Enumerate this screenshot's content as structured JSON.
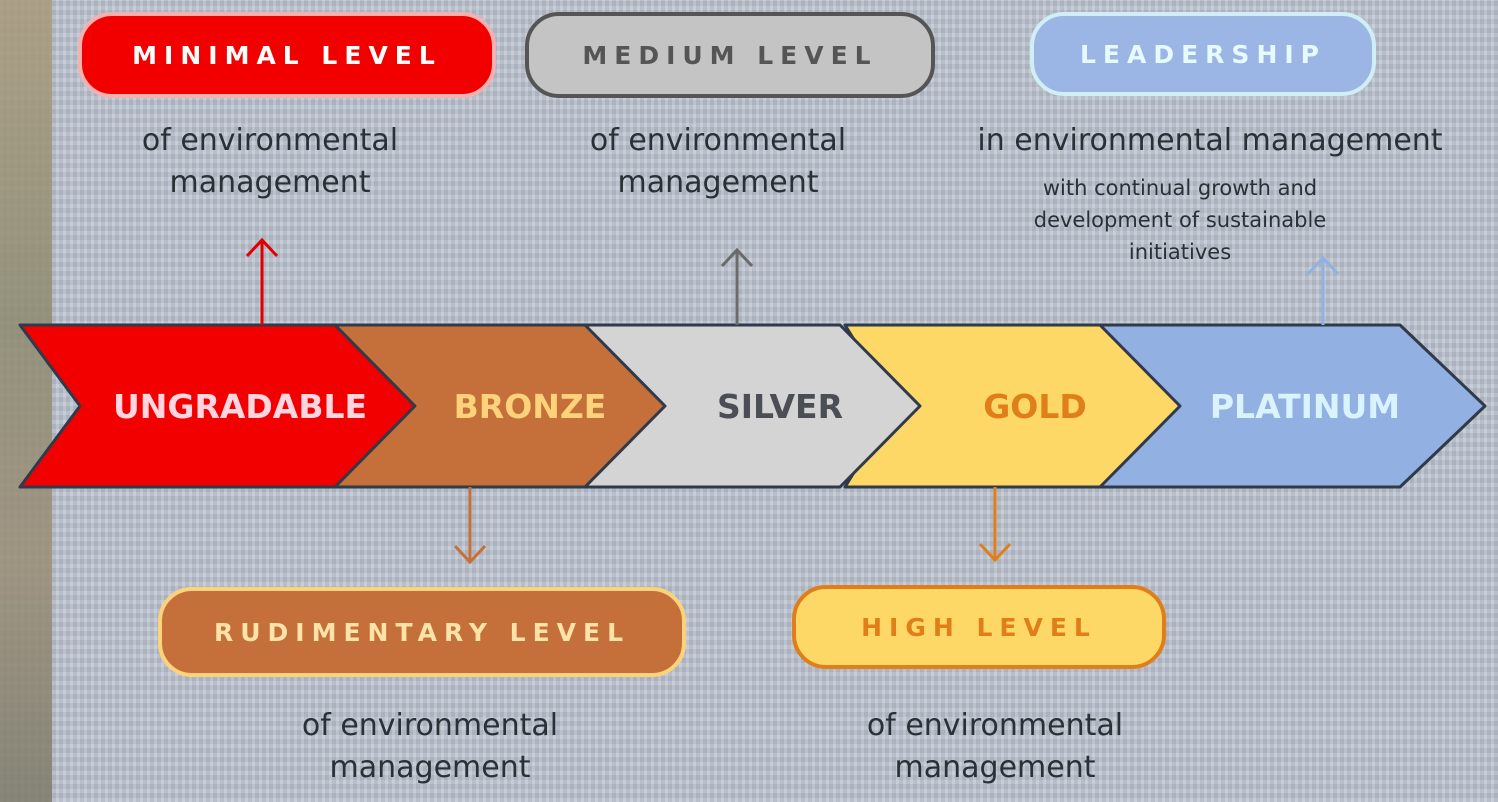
{
  "stages": [
    {
      "label": "UNGRADABLE"
    },
    {
      "label": "BRONZE"
    },
    {
      "label": "SILVER"
    },
    {
      "label": "GOLD"
    },
    {
      "label": "PLATINUM"
    }
  ],
  "callouts": [
    {
      "badge": "MINIMAL LEVEL",
      "description": "of environmental management"
    },
    {
      "badge": "RUDIMENTARY LEVEL",
      "description": "of environmental management"
    },
    {
      "badge": "MEDIUM LEVEL",
      "description": "of environmental management"
    },
    {
      "badge": "HIGH LEVEL",
      "description": "of environmental management"
    },
    {
      "badge": "LEADERSHIP",
      "description": "in environmental management",
      "detail": "with continual growth and development of sustainable initiatives"
    }
  ]
}
